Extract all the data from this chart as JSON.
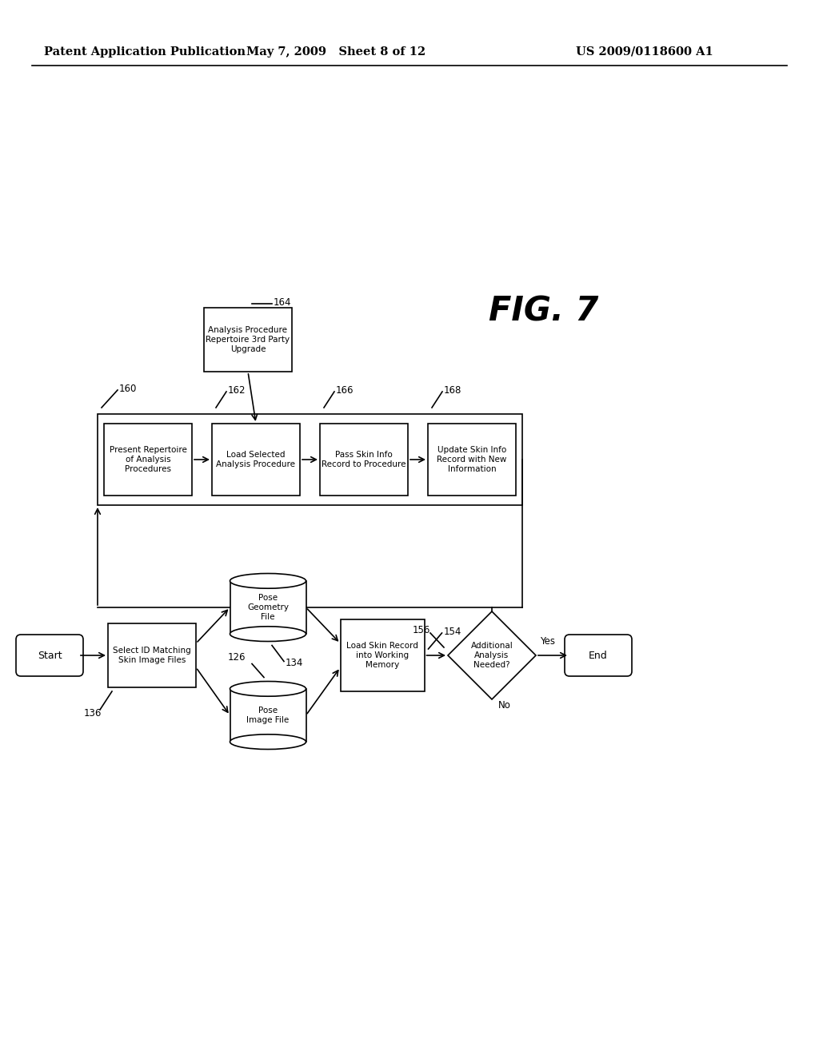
{
  "bg_color": "#ffffff",
  "header_left": "Patent Application Publication",
  "header_mid": "May 7, 2009   Sheet 8 of 12",
  "header_right": "US 2009/0118600 A1",
  "fig_label": "FIG. 7"
}
